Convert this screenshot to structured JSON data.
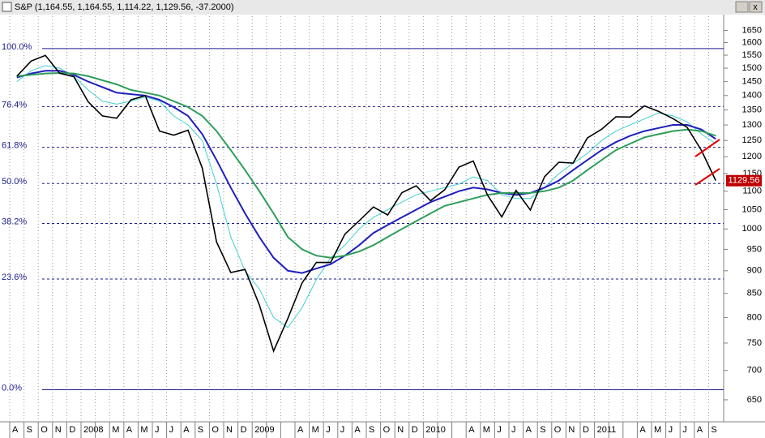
{
  "chart_data": {
    "type": "line",
    "title": "S&P (1,164.55, 1,164.55, 1,114.22, 1,129.56, -37.2000)",
    "categories": [
      "A",
      "S",
      "O",
      "N",
      "D",
      "2008",
      null,
      "M",
      "A",
      "M",
      "J",
      "J",
      "A",
      "S",
      "O",
      "N",
      "D",
      "2009",
      null,
      null,
      "A",
      "M",
      "J",
      "J",
      "A",
      "S",
      "O",
      "N",
      "D",
      "2010",
      null,
      null,
      "A",
      "M",
      "J",
      "J",
      "A",
      "S",
      "O",
      "N",
      "D",
      "2011",
      null,
      null,
      "A",
      "M",
      "J",
      "J",
      "A",
      "S"
    ],
    "series": [
      {
        "color": "#000000",
        "values": [
          1470,
          1527,
          1549,
          1481,
          1468,
          1378,
          1330,
          1322,
          1385,
          1400,
          1280,
          1267,
          1283,
          1166,
          968,
          896,
          903,
          826,
          735,
          798,
          873,
          919,
          919,
          987,
          1021,
          1057,
          1036,
          1096,
          1115,
          1074,
          1104,
          1169,
          1187,
          1089,
          1031,
          1102,
          1049,
          1141,
          1183,
          1181,
          1258,
          1286,
          1327,
          1326,
          1364,
          1345,
          1321,
          1292,
          1219,
          1130
        ]
      },
      {
        "color": "#2e9e5a",
        "values": [
          1470,
          1475,
          1480,
          1482,
          1480,
          1470,
          1455,
          1440,
          1420,
          1410,
          1400,
          1380,
          1360,
          1330,
          1280,
          1220,
          1160,
          1100,
          1040,
          980,
          950,
          935,
          930,
          935,
          945,
          960,
          980,
          1000,
          1020,
          1040,
          1060,
          1070,
          1080,
          1090,
          1095,
          1095,
          1095,
          1100,
          1110,
          1130,
          1160,
          1190,
          1220,
          1240,
          1260,
          1270,
          1280,
          1285,
          1280,
          1265
        ]
      },
      {
        "color": "#1f1fbf",
        "values": [
          1465,
          1480,
          1490,
          1490,
          1475,
          1450,
          1430,
          1410,
          1405,
          1400,
          1385,
          1360,
          1330,
          1270,
          1190,
          1110,
          1040,
          980,
          930,
          900,
          895,
          905,
          915,
          935,
          960,
          990,
          1010,
          1030,
          1050,
          1070,
          1085,
          1100,
          1110,
          1105,
          1095,
          1090,
          1095,
          1110,
          1130,
          1160,
          1190,
          1220,
          1245,
          1265,
          1280,
          1290,
          1300,
          1300,
          1285,
          1255
        ]
      },
      {
        "color": "#40d0d0",
        "values": [
          1450,
          1490,
          1510,
          1500,
          1470,
          1420,
          1380,
          1370,
          1380,
          1395,
          1380,
          1330,
          1300,
          1250,
          1120,
          980,
          900,
          860,
          800,
          780,
          820,
          880,
          930,
          960,
          1000,
          1030,
          1050,
          1070,
          1090,
          1100,
          1110,
          1120,
          1140,
          1130,
          1090,
          1080,
          1080,
          1110,
          1150,
          1180,
          1210,
          1250,
          1280,
          1300,
          1320,
          1340,
          1330,
          1310,
          1270,
          1240
        ]
      }
    ],
    "log_scale": true,
    "ylim": [
      615,
      1710
    ],
    "yticks": [
      650,
      700,
      750,
      800,
      850,
      900,
      950,
      1000,
      1050,
      1100,
      1150,
      1200,
      1250,
      1300,
      1350,
      1400,
      1450,
      1500,
      1550,
      1600,
      1650
    ],
    "fib_levels": [
      {
        "value": 1576.09,
        "label": "100.0%"
      },
      {
        "value": 1361.5,
        "label": "76.4%"
      },
      {
        "value": 1228.8,
        "label": "61.8%"
      },
      {
        "value": 1121.4,
        "label": "50.0%"
      },
      {
        "value": 1014.1,
        "label": "38.2%"
      },
      {
        "value": 881.4,
        "label": "23.6%"
      },
      {
        "value": 666.79,
        "label": "0.0%"
      }
    ],
    "last_price": 1129.56,
    "grid": true
  }
}
